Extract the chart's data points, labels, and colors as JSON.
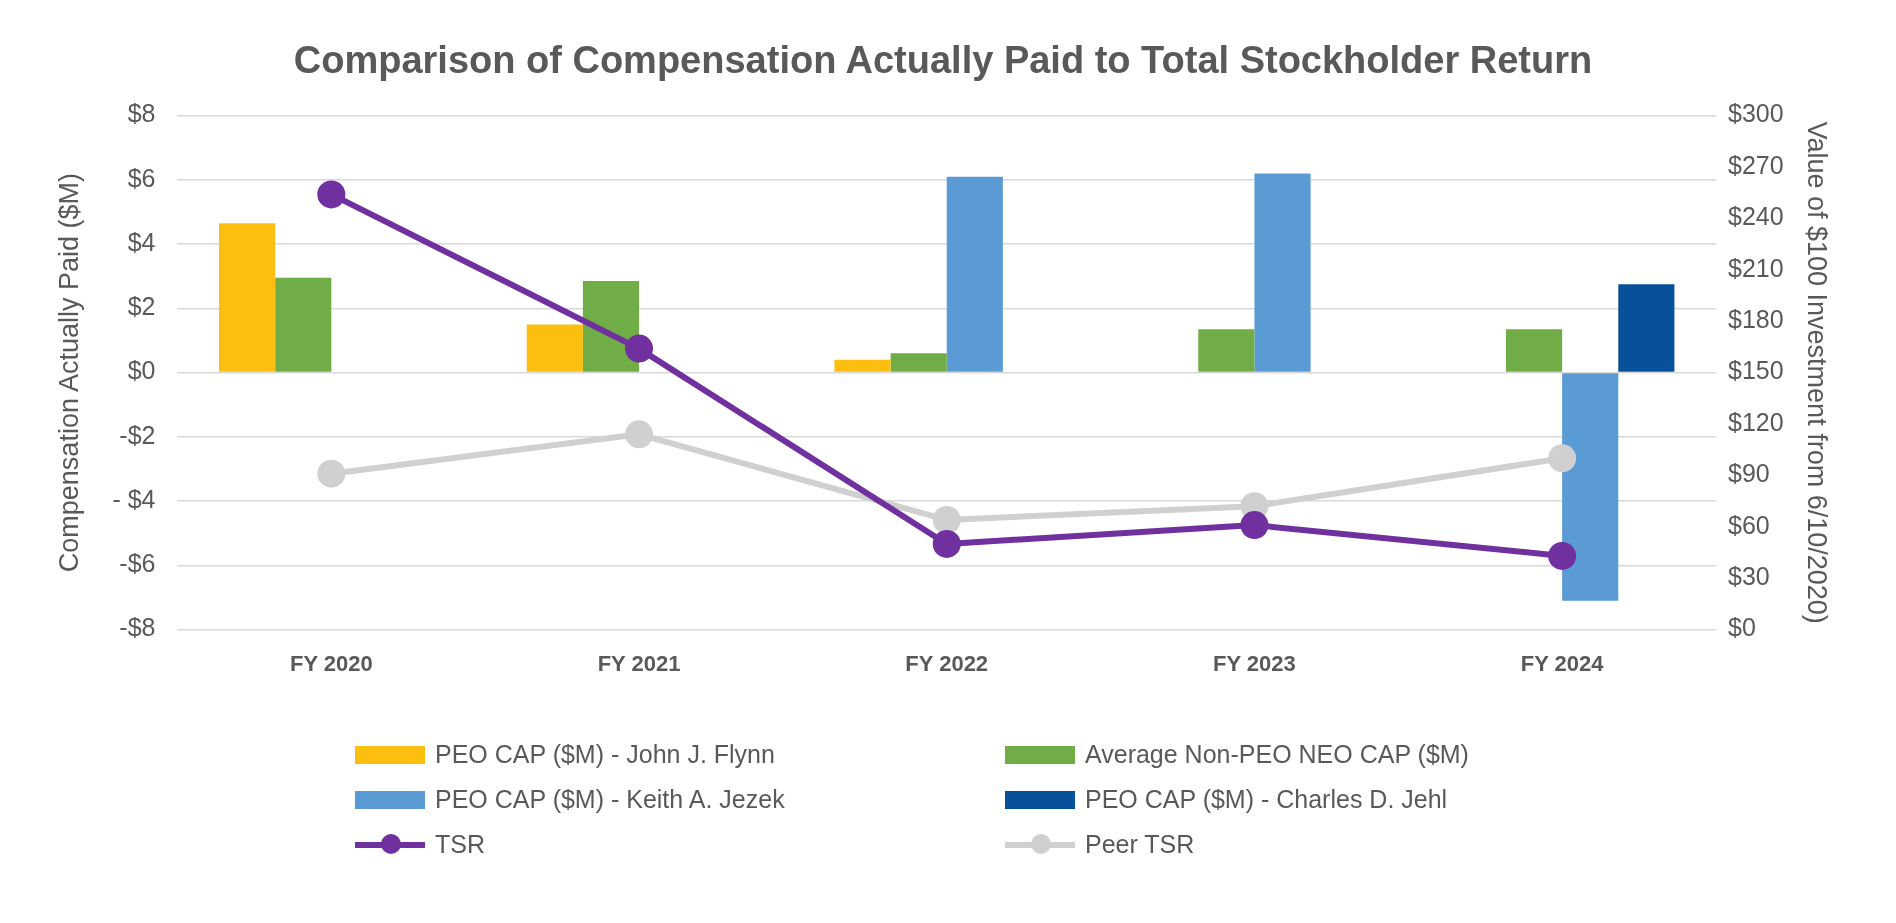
{
  "chart_data": {
    "type": "bar",
    "title": "Comparison of Compensation Actually Paid to Total Stockholder Return",
    "ylabel": "Compensation Actually Paid ($M)",
    "y2label": "Value of $100 Investment from 6/10/2020)",
    "categories": [
      "FY 2020",
      "FY 2021",
      "FY 2022",
      "FY 2023",
      "FY 2024"
    ],
    "series": [
      {
        "name": "PEO CAP ($M) - John J. Flynn",
        "color": "#fcbf10",
        "values": [
          4.65,
          1.5,
          0.4,
          null,
          null
        ]
      },
      {
        "name": "Average Non-PEO NEO CAP ($M)",
        "color": "#70ad47",
        "values": [
          2.95,
          2.85,
          0.6,
          1.35,
          1.35
        ]
      },
      {
        "name": "PEO CAP ($M) - Keith A. Jezek",
        "color": "#5b9bd5",
        "values": [
          null,
          null,
          6.1,
          6.2,
          -7.1
        ]
      },
      {
        "name": "PEO CAP ($M) - Charles D. Jehl",
        "color": "#07519a",
        "values": [
          null,
          null,
          null,
          null,
          2.75
        ]
      },
      {
        "name": "TSR",
        "type": "line",
        "axis": "y2",
        "color": "#7030a0",
        "values": [
          254,
          164,
          50,
          61,
          43
        ]
      },
      {
        "name": "Peer TSR",
        "type": "line",
        "axis": "y2",
        "color": "#d0d0d0",
        "values": [
          91,
          114,
          64,
          72,
          100
        ]
      }
    ],
    "ylim": [
      -8,
      8
    ],
    "yticks": [
      {
        "value": -8,
        "label": "-$8"
      },
      {
        "value": -6,
        "label": "-$6"
      },
      {
        "value": -4,
        "label": "- $4"
      },
      {
        "value": -2,
        "label": "-$2"
      },
      {
        "value": 0,
        "label": "$0"
      },
      {
        "value": 2,
        "label": "$2"
      },
      {
        "value": 4,
        "label": "$4"
      },
      {
        "value": 6,
        "label": "$6"
      },
      {
        "value": 8,
        "label": "$8"
      }
    ],
    "y2lim": [
      0,
      300
    ],
    "y2ticks": [
      {
        "value": 0,
        "label": "$0"
      },
      {
        "value": 30,
        "label": "$30"
      },
      {
        "value": 60,
        "label": "$60"
      },
      {
        "value": 90,
        "label": "$90"
      },
      {
        "value": 120,
        "label": "$120"
      },
      {
        "value": 150,
        "label": "$150"
      },
      {
        "value": 180,
        "label": "$180"
      },
      {
        "value": 210,
        "label": "$210"
      },
      {
        "value": 240,
        "label": "$240"
      },
      {
        "value": 270,
        "label": "$270"
      },
      {
        "value": 300,
        "label": "$300"
      }
    ],
    "grid": "y",
    "legend": "bottom",
    "marker": "circle",
    "line_style": "solid"
  }
}
